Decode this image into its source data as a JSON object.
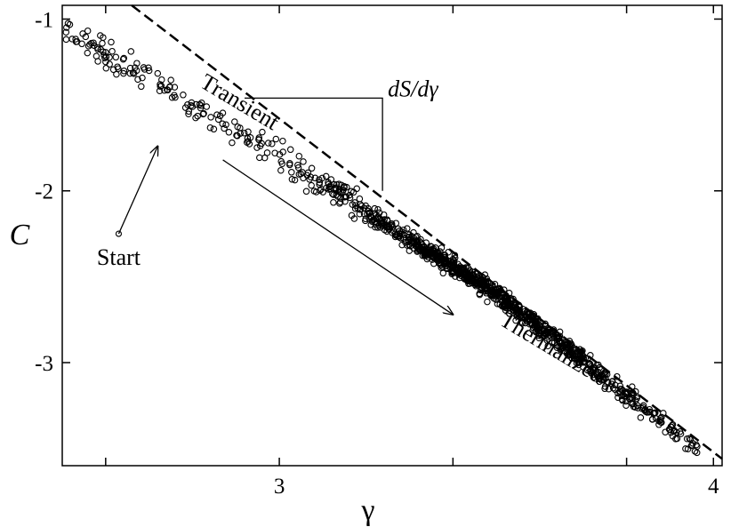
{
  "chart_data": {
    "type": "scatter",
    "title": "",
    "xlabel": "γ",
    "ylabel": "C",
    "xlim": [
      2.5,
      4.02
    ],
    "ylim": [
      -3.6,
      -0.92
    ],
    "xticks": [
      2.6,
      3.0,
      3.4,
      3.8,
      4.0
    ],
    "xtick_labels": [
      "",
      "3",
      "",
      "",
      "4"
    ],
    "yticks": [
      -1,
      -2,
      -3
    ],
    "ytick_labels": [
      "-1",
      "-2",
      "-3"
    ],
    "grid": false,
    "legend": "none",
    "marker": "open-circle",
    "colors": {
      "markers": "#000000",
      "lines": "#000000"
    },
    "dashed_line": {
      "name": "dS/dγ",
      "points": [
        [
          2.66,
          -0.92
        ],
        [
          4.02,
          -3.56
        ]
      ]
    },
    "cluster_model": {
      "n": 1100,
      "seed": 7,
      "x_range": [
        2.5,
        3.97
      ],
      "centre_line": [
        [
          2.5,
          -1.06
        ],
        [
          3.0,
          -1.8
        ],
        [
          3.5,
          -2.6
        ],
        [
          3.97,
          -3.52
        ]
      ],
      "spread": 0.07,
      "density_peak_x": 3.5
    },
    "annotations": [
      {
        "name": "dashed-line-label",
        "text": "dS/dγ",
        "label_xy": [
          3.25,
          -1.45
        ],
        "arrow_to": [
          3.2,
          -2.0
        ],
        "leader_from": [
          2.92,
          -1.46
        ]
      },
      {
        "name": "transient-label",
        "text": "Transient",
        "xy": [
          2.9,
          -1.52
        ],
        "rotation": 31
      },
      {
        "name": "thermalized-label",
        "text": "Thermalized",
        "xy": [
          3.62,
          -2.95
        ],
        "rotation": 31
      },
      {
        "name": "start-label",
        "text": "Start",
        "xy": [
          2.63,
          -2.43
        ]
      }
    ],
    "arrows": [
      {
        "name": "start-arrow",
        "from": [
          2.63,
          -2.25
        ],
        "to": [
          2.72,
          -1.74
        ]
      },
      {
        "name": "transient-arrow",
        "from": [
          2.87,
          -1.82
        ],
        "to": [
          3.4,
          -2.72
        ]
      }
    ]
  }
}
